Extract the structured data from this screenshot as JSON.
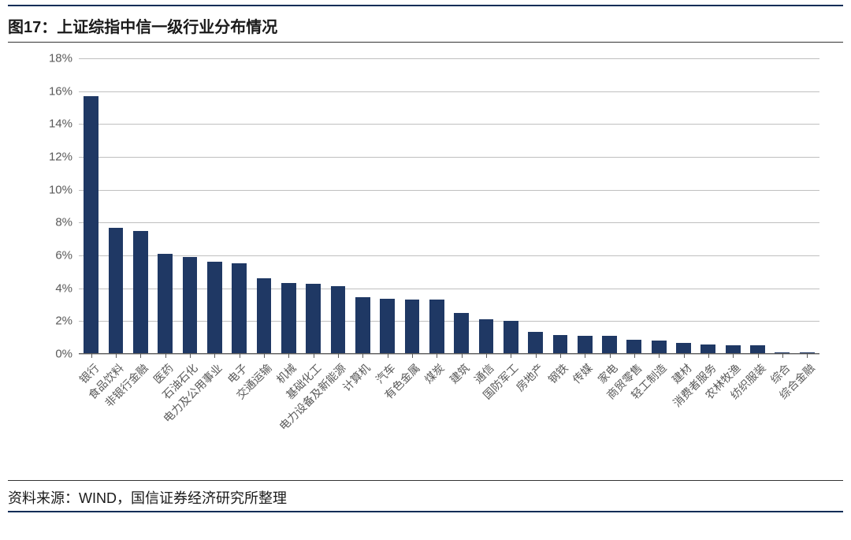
{
  "title": "图17：上证综指中信一级行业分布情况",
  "source": "资料来源：WIND，国信证券经济研究所整理",
  "chart": {
    "type": "bar",
    "categories": [
      "银行",
      "食品饮料",
      "非银行金融",
      "医药",
      "石油石化",
      "电力及公用事业",
      "电子",
      "交通运输",
      "机械",
      "基础化工",
      "电力设备及新能源",
      "计算机",
      "汽车",
      "有色金属",
      "煤炭",
      "建筑",
      "通信",
      "国防军工",
      "房地产",
      "钢铁",
      "传媒",
      "家电",
      "商贸零售",
      "轻工制造",
      "建材",
      "消费者服务",
      "农林牧渔",
      "纺织服装",
      "综合",
      "综合金融"
    ],
    "values": [
      15.7,
      7.7,
      7.5,
      6.1,
      5.9,
      5.6,
      5.5,
      4.6,
      4.3,
      4.25,
      4.15,
      3.45,
      3.35,
      3.3,
      3.3,
      2.5,
      2.1,
      2.0,
      1.35,
      1.15,
      1.1,
      1.1,
      0.85,
      0.8,
      0.65,
      0.6,
      0.55,
      0.55,
      0.1,
      0.1
    ],
    "bar_color": "#1f3864",
    "grid_color": "#bfbfbf",
    "axis_label_color": "#595959",
    "background_color": "#ffffff",
    "ylim": [
      0,
      18
    ],
    "ytick_step": 2,
    "y_suffix": "%",
    "x_rotation_deg": -45,
    "label_fontsize": 14,
    "ylabel_fontsize": 15,
    "title_fontsize": 20,
    "bar_width_ratio": 0.6
  }
}
